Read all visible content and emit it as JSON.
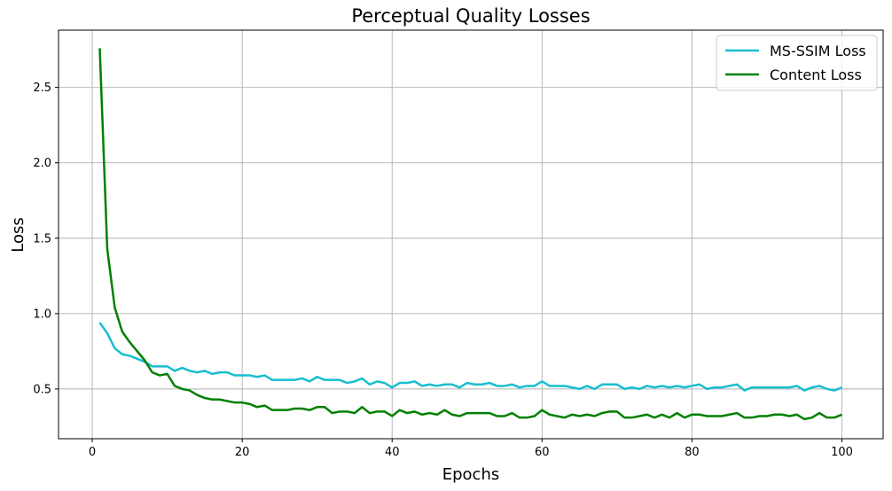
{
  "chart_data": {
    "type": "line",
    "title": "Perceptual Quality Losses",
    "xlabel": "Epochs",
    "ylabel": "Loss",
    "xlim": [
      -4.5,
      105.5
    ],
    "ylim": [
      0.17,
      2.88
    ],
    "xticks": [
      0,
      20,
      40,
      60,
      80,
      100
    ],
    "yticks": [
      0.5,
      1.0,
      1.5,
      2.0,
      2.5
    ],
    "xtick_labels": [
      "0",
      "20",
      "40",
      "60",
      "80",
      "100"
    ],
    "ytick_labels": [
      "0.5",
      "1.0",
      "1.5",
      "2.0",
      "2.5"
    ],
    "grid": true,
    "legend_position": "top-right",
    "x": [
      1,
      2,
      3,
      4,
      5,
      6,
      7,
      8,
      9,
      10,
      11,
      12,
      13,
      14,
      15,
      16,
      17,
      18,
      19,
      20,
      21,
      22,
      23,
      24,
      25,
      26,
      27,
      28,
      29,
      30,
      31,
      32,
      33,
      34,
      35,
      36,
      37,
      38,
      39,
      40,
      41,
      42,
      43,
      44,
      45,
      46,
      47,
      48,
      49,
      50,
      51,
      52,
      53,
      54,
      55,
      56,
      57,
      58,
      59,
      60,
      61,
      62,
      63,
      64,
      65,
      66,
      67,
      68,
      69,
      70,
      71,
      72,
      73,
      74,
      75,
      76,
      77,
      78,
      79,
      80,
      81,
      82,
      83,
      84,
      85,
      86,
      87,
      88,
      89,
      90,
      91,
      92,
      93,
      94,
      95,
      96,
      97,
      98,
      99,
      100
    ],
    "series": [
      {
        "name": "MS-SSIM Loss",
        "color": "#17becf",
        "values": [
          0.94,
          0.87,
          0.77,
          0.73,
          0.72,
          0.7,
          0.68,
          0.65,
          0.65,
          0.65,
          0.62,
          0.64,
          0.62,
          0.61,
          0.62,
          0.6,
          0.61,
          0.61,
          0.59,
          0.59,
          0.59,
          0.58,
          0.59,
          0.56,
          0.56,
          0.56,
          0.56,
          0.57,
          0.55,
          0.58,
          0.56,
          0.56,
          0.56,
          0.54,
          0.55,
          0.57,
          0.53,
          0.55,
          0.54,
          0.51,
          0.54,
          0.54,
          0.55,
          0.52,
          0.53,
          0.52,
          0.53,
          0.53,
          0.51,
          0.54,
          0.53,
          0.53,
          0.54,
          0.52,
          0.52,
          0.53,
          0.51,
          0.52,
          0.52,
          0.55,
          0.52,
          0.52,
          0.52,
          0.51,
          0.5,
          0.52,
          0.5,
          0.53,
          0.53,
          0.53,
          0.5,
          0.51,
          0.5,
          0.52,
          0.51,
          0.52,
          0.51,
          0.52,
          0.51,
          0.52,
          0.53,
          0.5,
          0.51,
          0.51,
          0.52,
          0.53,
          0.49,
          0.51,
          0.51,
          0.51,
          0.51,
          0.51,
          0.51,
          0.52,
          0.49,
          0.51,
          0.52,
          0.5,
          0.49,
          0.51
        ]
      },
      {
        "name": "Content Loss",
        "color": "#008000",
        "values": [
          2.76,
          1.43,
          1.04,
          0.88,
          0.81,
          0.75,
          0.69,
          0.61,
          0.59,
          0.6,
          0.52,
          0.5,
          0.49,
          0.46,
          0.44,
          0.43,
          0.43,
          0.42,
          0.41,
          0.41,
          0.4,
          0.38,
          0.39,
          0.36,
          0.36,
          0.36,
          0.37,
          0.37,
          0.36,
          0.38,
          0.38,
          0.34,
          0.35,
          0.35,
          0.34,
          0.38,
          0.34,
          0.35,
          0.35,
          0.32,
          0.36,
          0.34,
          0.35,
          0.33,
          0.34,
          0.33,
          0.36,
          0.33,
          0.32,
          0.34,
          0.34,
          0.34,
          0.34,
          0.32,
          0.32,
          0.34,
          0.31,
          0.31,
          0.32,
          0.36,
          0.33,
          0.32,
          0.31,
          0.33,
          0.32,
          0.33,
          0.32,
          0.34,
          0.35,
          0.35,
          0.31,
          0.31,
          0.32,
          0.33,
          0.31,
          0.33,
          0.31,
          0.34,
          0.31,
          0.33,
          0.33,
          0.32,
          0.32,
          0.32,
          0.33,
          0.34,
          0.31,
          0.31,
          0.32,
          0.32,
          0.33,
          0.33,
          0.32,
          0.33,
          0.3,
          0.31,
          0.34,
          0.31,
          0.31,
          0.33
        ]
      }
    ]
  }
}
